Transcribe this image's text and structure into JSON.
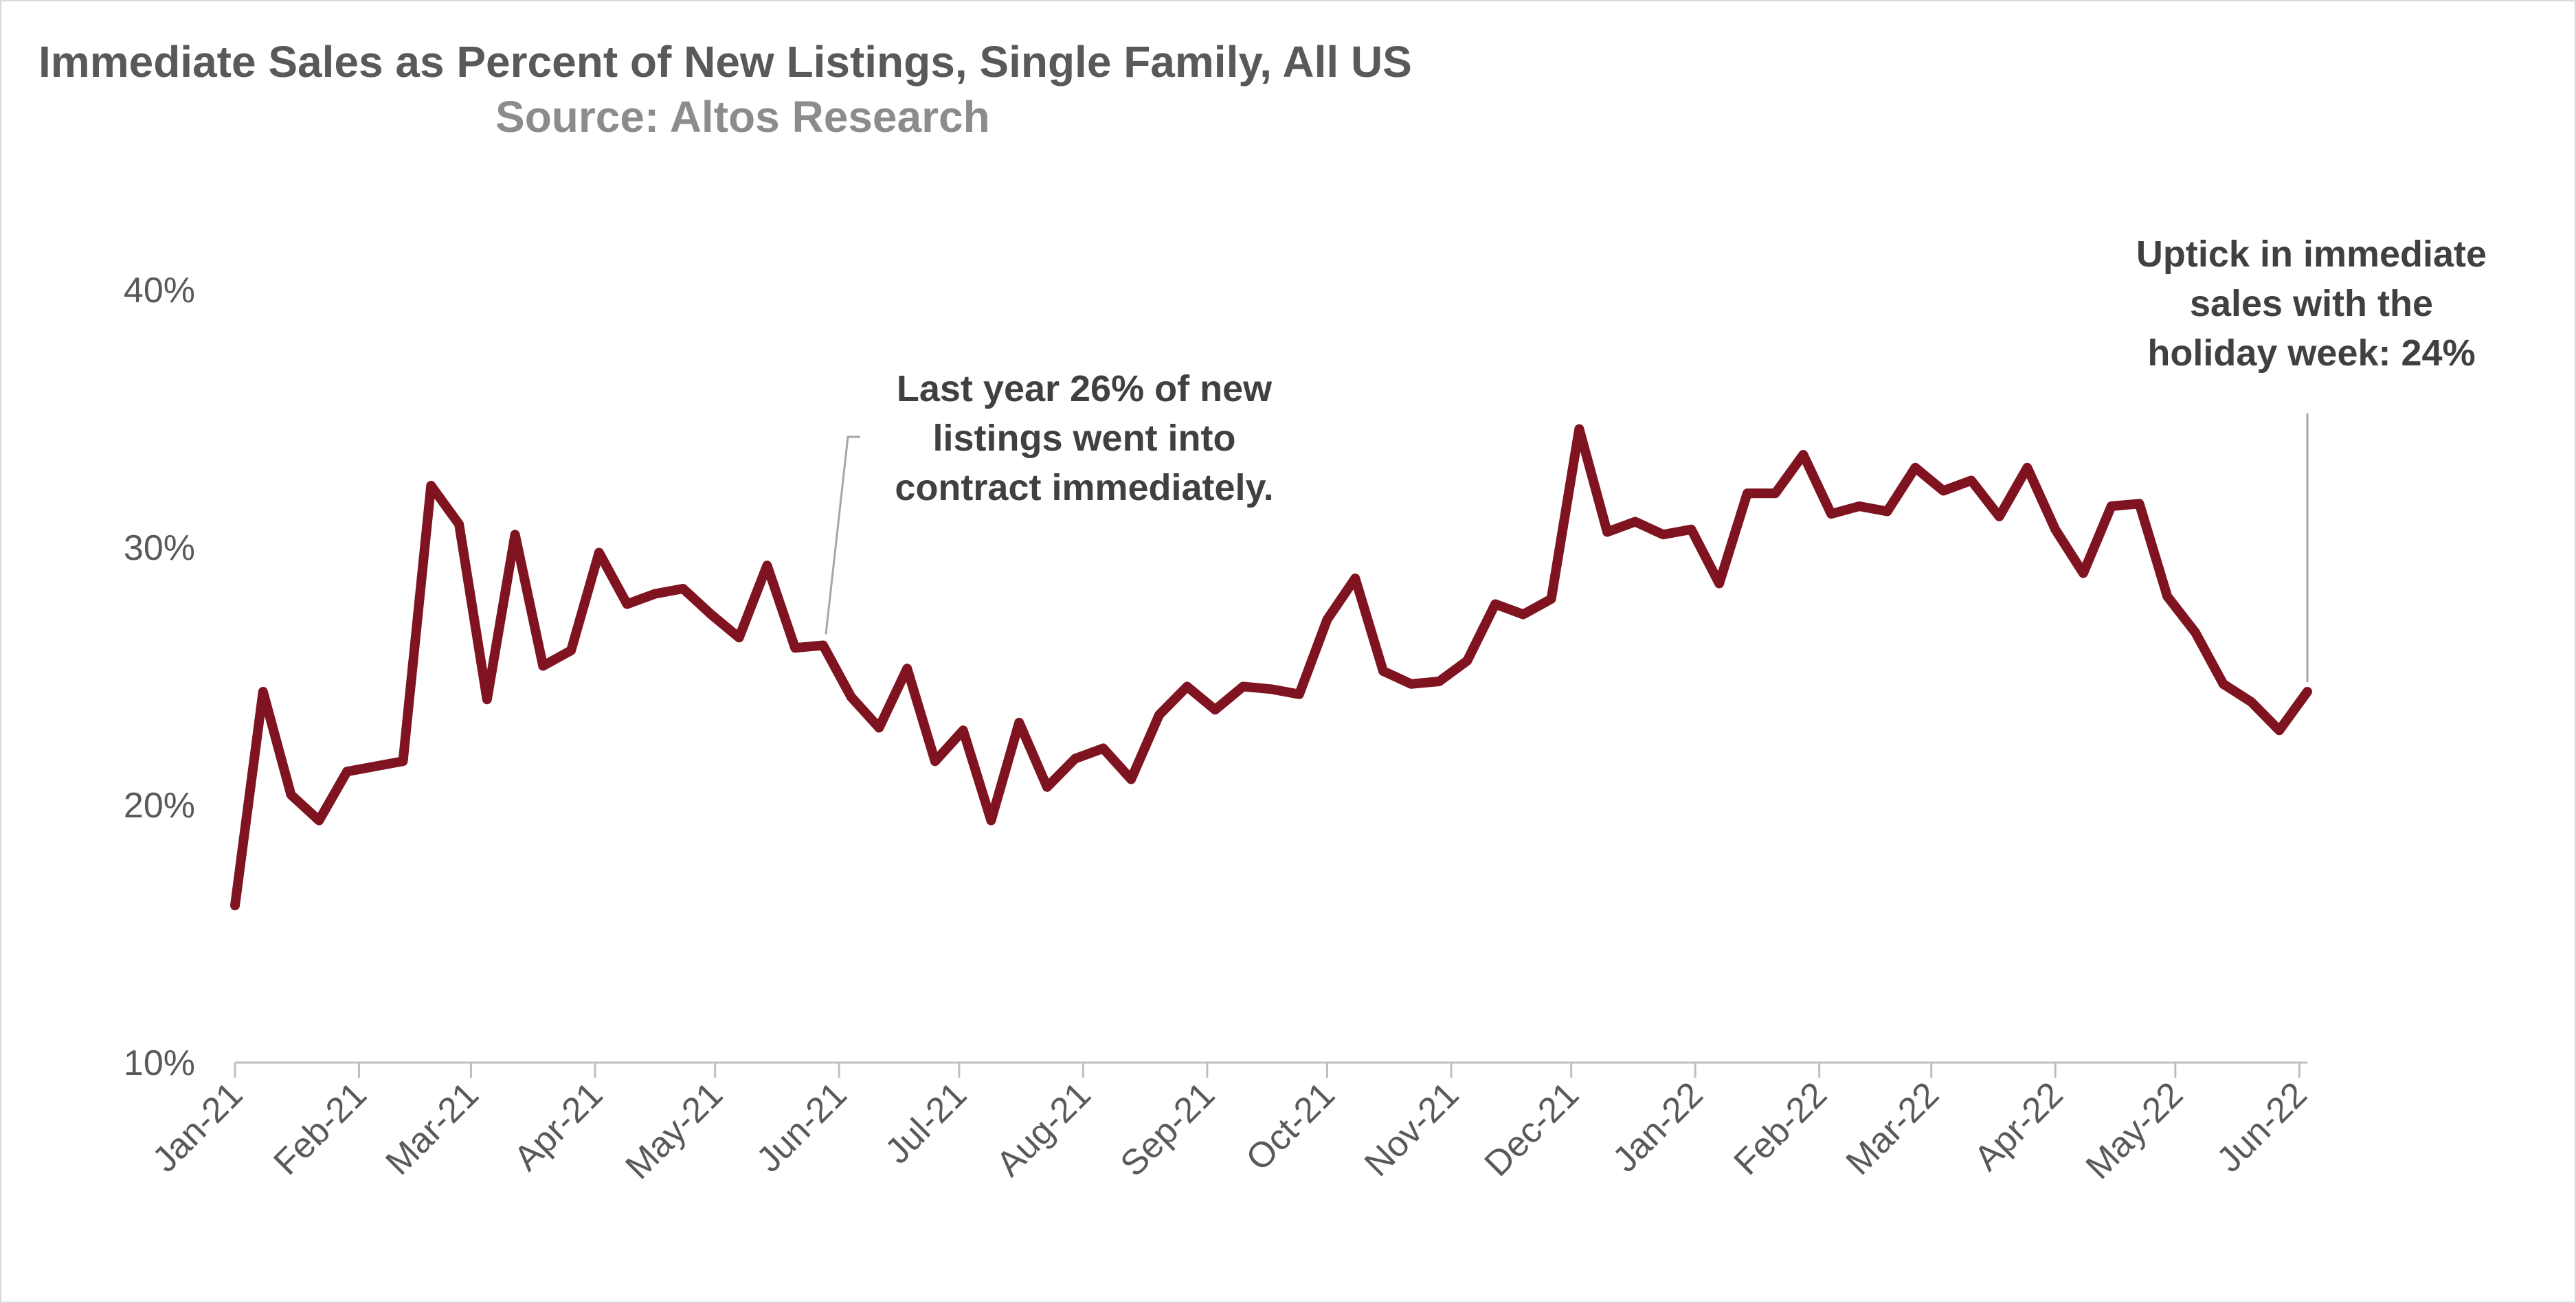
{
  "chart_data": {
    "type": "line",
    "title": "Immediate Sales as Percent of New Listings, Single Family, All US",
    "subtitle": "Source: Altos Research",
    "xlabel": "",
    "ylabel": "",
    "ylim": [
      10,
      40
    ],
    "yticks": [
      "10%",
      "20%",
      "30%",
      "40%"
    ],
    "ytick_values": [
      10,
      20,
      30,
      40
    ],
    "x_tick_labels": [
      "Jan-21",
      "Feb-21",
      "Mar-21",
      "Apr-21",
      "May-21",
      "Jun-21",
      "Jul-21",
      "Aug-21",
      "Sep-21",
      "Oct-21",
      "Nov-21",
      "Dec-21",
      "Jan-22",
      "Feb-22",
      "Mar-22",
      "Apr-22",
      "May-22",
      "Jun-22"
    ],
    "x_range": [
      "2021-01-01",
      "2022-06-03"
    ],
    "grid": false,
    "legend": "none",
    "line_color": "#7f1420",
    "series": [
      {
        "values": [
          [
            "2021-01-01",
            16.1
          ],
          [
            "2021-01-08",
            24.4
          ],
          [
            "2021-01-15",
            20.4
          ],
          [
            "2021-01-22",
            19.4
          ],
          [
            "2021-01-29",
            21.3
          ],
          [
            "2021-02-05",
            21.5
          ],
          [
            "2021-02-12",
            21.7
          ],
          [
            "2021-02-19",
            32.4
          ],
          [
            "2021-02-26",
            30.9
          ],
          [
            "2021-03-05",
            24.1
          ],
          [
            "2021-03-12",
            30.5
          ],
          [
            "2021-03-19",
            25.4
          ],
          [
            "2021-03-26",
            26.0
          ],
          [
            "2021-04-02",
            29.8
          ],
          [
            "2021-04-09",
            27.8
          ],
          [
            "2021-04-16",
            28.2
          ],
          [
            "2021-04-23",
            28.4
          ],
          [
            "2021-04-30",
            27.4
          ],
          [
            "2021-05-07",
            26.5
          ],
          [
            "2021-05-14",
            29.3
          ],
          [
            "2021-05-21",
            26.1
          ],
          [
            "2021-05-28",
            26.2
          ],
          [
            "2021-06-04",
            24.2
          ],
          [
            "2021-06-11",
            23.0
          ],
          [
            "2021-06-18",
            25.3
          ],
          [
            "2021-06-25",
            21.7
          ],
          [
            "2021-07-02",
            22.9
          ],
          [
            "2021-07-09",
            19.4
          ],
          [
            "2021-07-16",
            23.2
          ],
          [
            "2021-07-23",
            20.7
          ],
          [
            "2021-07-30",
            21.8
          ],
          [
            "2021-08-06",
            22.2
          ],
          [
            "2021-08-13",
            21.0
          ],
          [
            "2021-08-20",
            23.5
          ],
          [
            "2021-08-27",
            24.6
          ],
          [
            "2021-09-03",
            23.7
          ],
          [
            "2021-09-10",
            24.6
          ],
          [
            "2021-09-17",
            24.5
          ],
          [
            "2021-09-24",
            24.3
          ],
          [
            "2021-10-01",
            27.2
          ],
          [
            "2021-10-08",
            28.8
          ],
          [
            "2021-10-15",
            25.2
          ],
          [
            "2021-10-22",
            24.7
          ],
          [
            "2021-10-29",
            24.8
          ],
          [
            "2021-11-05",
            25.6
          ],
          [
            "2021-11-12",
            27.8
          ],
          [
            "2021-11-19",
            27.4
          ],
          [
            "2021-11-26",
            28.0
          ],
          [
            "2021-12-03",
            34.6
          ],
          [
            "2021-12-10",
            30.6
          ],
          [
            "2021-12-17",
            31.0
          ],
          [
            "2021-12-24",
            30.5
          ],
          [
            "2021-12-31",
            30.7
          ],
          [
            "2022-01-07",
            28.6
          ],
          [
            "2022-01-14",
            32.1
          ],
          [
            "2022-01-21",
            32.1
          ],
          [
            "2022-01-28",
            33.6
          ],
          [
            "2022-02-04",
            31.3
          ],
          [
            "2022-02-11",
            31.6
          ],
          [
            "2022-02-18",
            31.4
          ],
          [
            "2022-02-25",
            33.1
          ],
          [
            "2022-03-04",
            32.2
          ],
          [
            "2022-03-11",
            32.6
          ],
          [
            "2022-03-18",
            31.2
          ],
          [
            "2022-03-25",
            33.1
          ],
          [
            "2022-04-01",
            30.7
          ],
          [
            "2022-04-08",
            29.0
          ],
          [
            "2022-04-15",
            31.6
          ],
          [
            "2022-04-22",
            31.7
          ],
          [
            "2022-04-29",
            28.1
          ],
          [
            "2022-05-06",
            26.7
          ],
          [
            "2022-05-13",
            24.7
          ],
          [
            "2022-05-20",
            24.0
          ],
          [
            "2022-05-27",
            22.9
          ],
          [
            "2022-06-03",
            24.4
          ]
        ]
      }
    ],
    "annotations": [
      {
        "lines": [
          "Last year 26% of new",
          "listings went into",
          "contract immediately."
        ],
        "points_to": "2021-05-28"
      },
      {
        "lines": [
          "Uptick in immediate",
          "sales with the",
          "holiday week: 24%"
        ],
        "points_to": "2022-06-03"
      }
    ]
  }
}
